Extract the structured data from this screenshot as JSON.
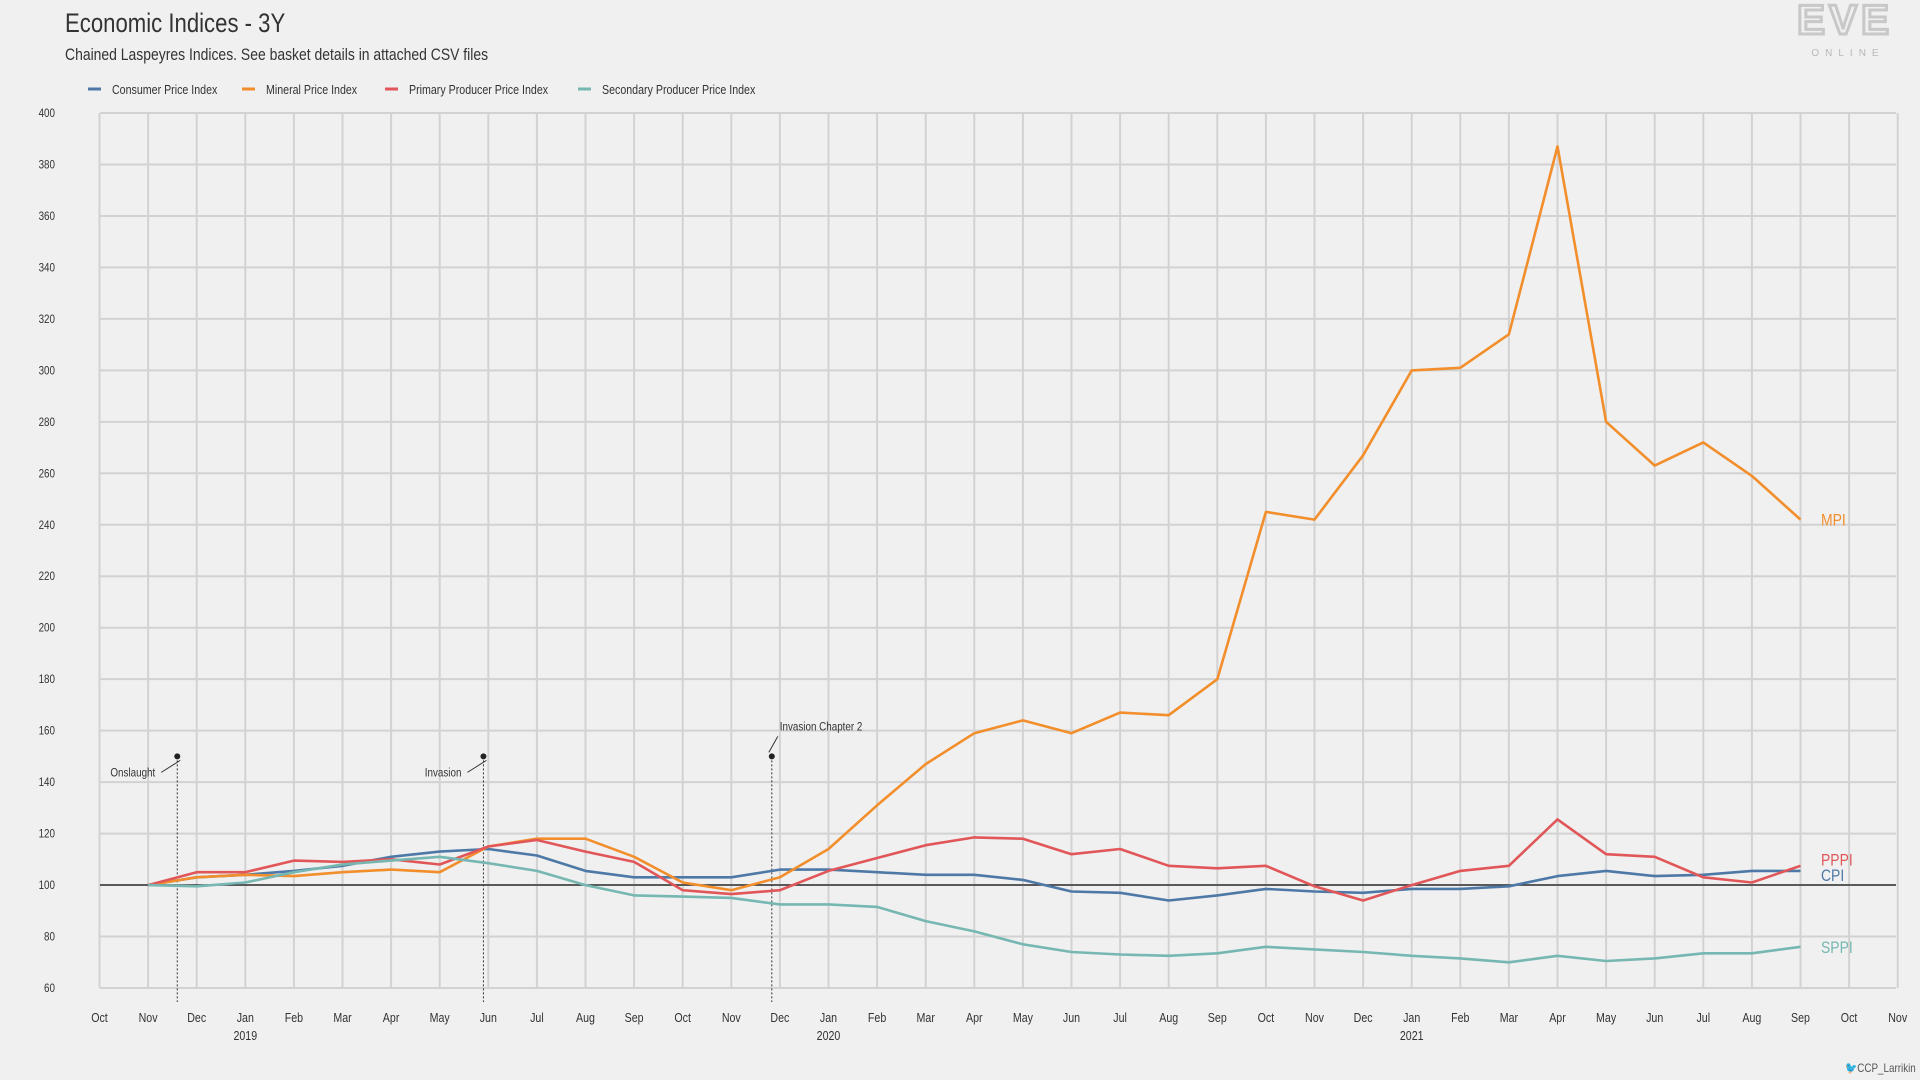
{
  "title": "Economic Indices - 3Y",
  "subtitle": "Chained Laspeyres Indices. See basket details in attached CSV files",
  "logo": {
    "main": "EVE",
    "sub": "ONLINE"
  },
  "credit": {
    "handle": "CCP_Larrikin",
    "icon": "twitter-bird-icon"
  },
  "chart_data": {
    "type": "line",
    "title": "Economic Indices - 3Y",
    "subtitle": "Chained Laspeyres Indices. See basket details in attached CSV files",
    "ylim": [
      60,
      400
    ],
    "yticks": [
      60,
      80,
      100,
      120,
      140,
      160,
      180,
      200,
      220,
      240,
      260,
      280,
      300,
      320,
      340,
      360,
      380,
      400
    ],
    "baseline": 100,
    "grid": true,
    "legend_position": "top-left",
    "x_ticks": [
      "Oct",
      "Nov",
      "Dec",
      "Jan",
      "Feb",
      "Mar",
      "Apr",
      "May",
      "Jun",
      "Jul",
      "Aug",
      "Sep",
      "Oct",
      "Nov",
      "Dec",
      "Jan",
      "Feb",
      "Mar",
      "Apr",
      "May",
      "Jun",
      "Jul",
      "Aug",
      "Sep",
      "Oct",
      "Nov",
      "Dec",
      "Jan",
      "Feb",
      "Mar",
      "Apr",
      "May",
      "Jun",
      "Jul",
      "Aug",
      "Sep",
      "Oct",
      "Nov"
    ],
    "year_labels": [
      {
        "tick": 3,
        "label": "2019"
      },
      {
        "tick": 15,
        "label": "2020"
      },
      {
        "tick": 27,
        "label": "2021"
      }
    ],
    "dates": [
      "2018-11",
      "2018-12",
      "2019-01",
      "2019-02",
      "2019-03",
      "2019-04",
      "2019-05",
      "2019-06",
      "2019-07",
      "2019-08",
      "2019-09",
      "2019-10",
      "2019-11",
      "2019-12",
      "2020-01",
      "2020-02",
      "2020-03",
      "2020-04",
      "2020-05",
      "2020-06",
      "2020-07",
      "2020-08",
      "2020-09",
      "2020-10",
      "2020-11",
      "2020-12",
      "2021-01",
      "2021-02",
      "2021-03",
      "2021-04",
      "2021-05",
      "2021-06",
      "2021-07",
      "2021-08",
      "2021-09"
    ],
    "series": [
      {
        "name": "Consumer Price Index",
        "short": "CPI",
        "color": "#4e79a7",
        "values": [
          100,
          103,
          104,
          105.5,
          107.5,
          111,
          113,
          114,
          111.5,
          105.5,
          103,
          103,
          103,
          106,
          106,
          105,
          104,
          104,
          102,
          97.5,
          97,
          94,
          96,
          98.5,
          97.5,
          97,
          98.5,
          98.5,
          99.5,
          103.5,
          105.5,
          103.5,
          104,
          105.5,
          105.5
        ]
      },
      {
        "name": "Mineral Price Index",
        "short": "MPI",
        "color": "#f28e2b",
        "values": [
          100,
          103,
          104,
          103.5,
          105,
          106,
          105,
          115,
          118,
          118,
          111,
          101,
          98,
          103,
          114,
          131,
          147,
          159,
          164,
          159,
          167,
          166,
          180,
          245,
          242,
          267,
          300,
          301,
          314,
          387,
          280,
          263,
          272,
          259,
          242
        ]
      },
      {
        "name": "Primary Producer Price Index",
        "short": "PPPI",
        "color": "#e15759",
        "values": [
          100,
          105,
          105,
          109.5,
          109,
          110,
          108,
          115,
          117.5,
          113,
          109,
          98,
          96.5,
          98,
          105.5,
          110.5,
          115.5,
          118.5,
          118,
          112,
          114,
          107.5,
          106.5,
          107.5,
          99.5,
          94,
          100,
          105.5,
          107.5,
          125.5,
          112,
          111,
          103,
          101,
          107.5
        ]
      },
      {
        "name": "Secondary Producer Price Index",
        "short": "SPPI",
        "color": "#76b7b2",
        "values": [
          100,
          99.5,
          101,
          105,
          108,
          109.5,
          111,
          108.5,
          105.5,
          100,
          96,
          95.5,
          95,
          92.5,
          92.5,
          91.5,
          86,
          82,
          77,
          74,
          73,
          72.5,
          73.5,
          76,
          75,
          74,
          72.5,
          71.5,
          70,
          72.5,
          70.5,
          71.5,
          73.5,
          73.5,
          76
        ]
      }
    ],
    "end_labels": [
      "MPI",
      "PPPI",
      "CPI",
      "SPPI"
    ],
    "annotations": [
      {
        "label": "Onslaught",
        "date": "2018-11-19",
        "y": 150
      },
      {
        "label": "Invasion",
        "date": "2019-05-28",
        "y": 150
      },
      {
        "label": "Invasion Chapter 2",
        "date": "2019-11-26",
        "y": 150
      }
    ]
  }
}
